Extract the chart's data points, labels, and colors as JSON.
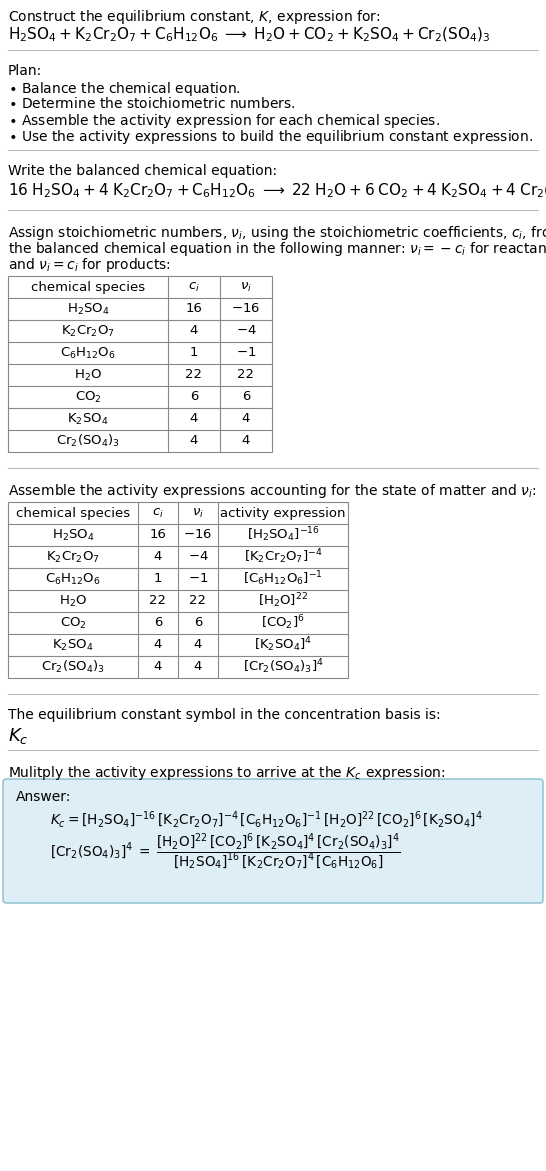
{
  "bg_color": "#ffffff",
  "text_color": "#000000",
  "table_border_color": "#888888",
  "answer_box_facecolor": "#ddeef6",
  "answer_box_edgecolor": "#88bbcc"
}
